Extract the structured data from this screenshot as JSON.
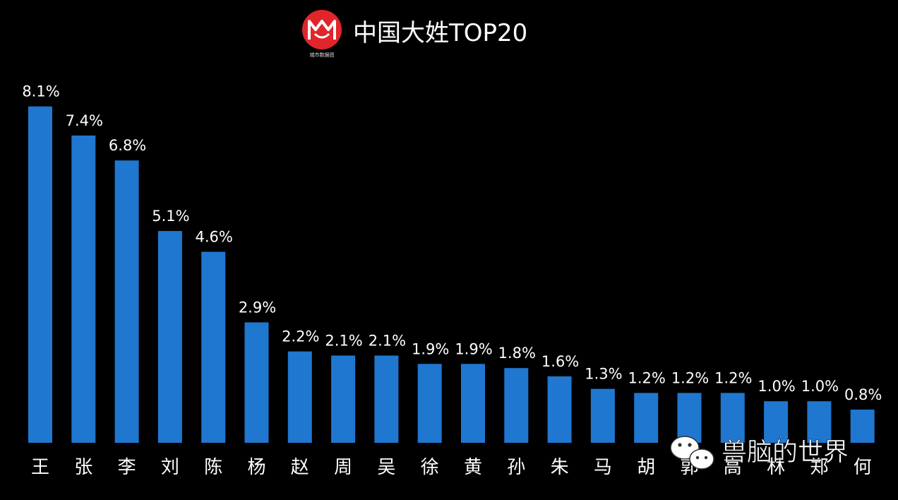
{
  "chart_data": {
    "type": "bar",
    "title": "中国大姓TOP20",
    "categories": [
      "王",
      "张",
      "李",
      "刘",
      "陈",
      "杨",
      "赵",
      "周",
      "吴",
      "徐",
      "黄",
      "孙",
      "朱",
      "马",
      "胡",
      "郭",
      "高",
      "林",
      "郑",
      "何"
    ],
    "values": [
      8.1,
      7.4,
      6.8,
      5.1,
      4.6,
      2.9,
      2.2,
      2.1,
      2.1,
      1.9,
      1.9,
      1.8,
      1.6,
      1.3,
      1.2,
      1.2,
      1.2,
      1.0,
      1.0,
      0.8
    ],
    "data_labels": [
      "8.1%",
      "7.4%",
      "6.8%",
      "5.1%",
      "4.6%",
      "2.9%",
      "2.2%",
      "2.1%",
      "2.1%",
      "1.9%",
      "1.9%",
      "1.8%",
      "1.6%",
      "1.3%",
      "1.2%",
      "1.2%",
      "1.2%",
      "1.0%",
      "1.0%",
      "0.8%"
    ],
    "unit": "%",
    "xlabel": "",
    "ylabel": "",
    "grid": false,
    "bar_color": "#1f77d0",
    "background": "#000000"
  },
  "logo": {
    "caption": "城市数据团",
    "color": "#e0262b"
  },
  "watermark": {
    "text": "兽脑的世界",
    "icon": "wechat-icon"
  }
}
